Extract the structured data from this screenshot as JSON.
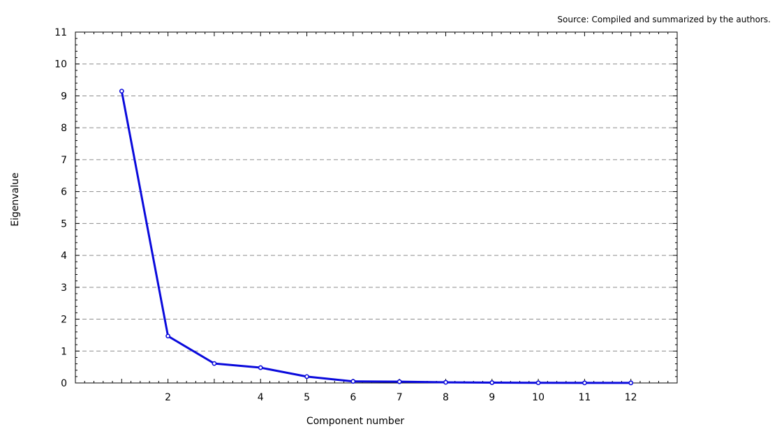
{
  "chart_data": {
    "type": "line",
    "title": "",
    "source_note": "Source: Compiled and summarized by the authors.",
    "xlabel": "Component number",
    "ylabel": "Eigenvalue",
    "x": [
      1,
      2,
      3,
      4,
      5,
      6,
      7,
      8,
      9,
      10,
      11,
      12
    ],
    "x_tick_labels": [
      "",
      "2",
      "",
      "4",
      "5",
      "6",
      "7",
      "8",
      "9",
      "10",
      "11",
      "12"
    ],
    "ylim": [
      0,
      11
    ],
    "y_ticks": [
      0,
      1,
      2,
      3,
      4,
      5,
      6,
      7,
      8,
      9,
      10,
      11
    ],
    "grid": "horizontal dashed",
    "legend": "none",
    "series": [
      {
        "color": "#0a0adc",
        "values": [
          9.15,
          1.47,
          0.61,
          0.48,
          0.2,
          0.05,
          0.04,
          0.02,
          0.01,
          0.005,
          0.003,
          0.002
        ]
      }
    ]
  }
}
